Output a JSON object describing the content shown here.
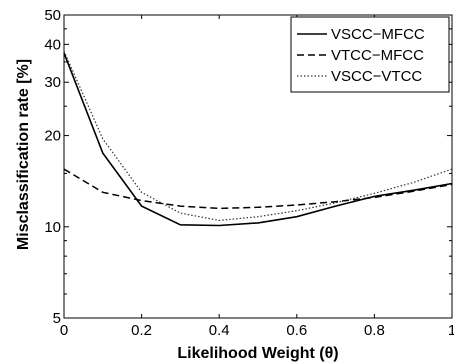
{
  "chart_data": {
    "type": "line",
    "xlabel": "Likelihood Weight (θ)",
    "ylabel": "Misclassification rate [%]",
    "xlim": [
      0,
      1
    ],
    "ylim": [
      5,
      50
    ],
    "yscale": "log",
    "xticks": [
      "0",
      "0.2",
      "0.4",
      "0.6",
      "0.8",
      "1"
    ],
    "yticks": [
      "5",
      "10",
      "20",
      "30",
      "40",
      "50"
    ],
    "legend_position": "top-right",
    "grid": false,
    "x": [
      0,
      0.1,
      0.2,
      0.3,
      0.4,
      0.5,
      0.6,
      0.7,
      0.8,
      0.9,
      1.0
    ],
    "series": [
      {
        "name": "VSCC−MFCC",
        "style": "solid",
        "color": "#000000",
        "values": [
          37.5,
          17.5,
          11.7,
          10.15,
          10.1,
          10.3,
          10.8,
          11.7,
          12.6,
          13.2,
          13.9
        ]
      },
      {
        "name": "VTCC−MFCC",
        "style": "dashed",
        "color": "#000000",
        "values": [
          15.5,
          13.0,
          12.2,
          11.7,
          11.5,
          11.6,
          11.8,
          12.1,
          12.5,
          13.1,
          13.8
        ]
      },
      {
        "name": "VSCC−VTCC",
        "style": "dotted",
        "color": "#000000",
        "values": [
          38.0,
          19.5,
          13.0,
          11.1,
          10.5,
          10.8,
          11.3,
          12.0,
          12.9,
          14.0,
          15.5
        ]
      }
    ]
  }
}
